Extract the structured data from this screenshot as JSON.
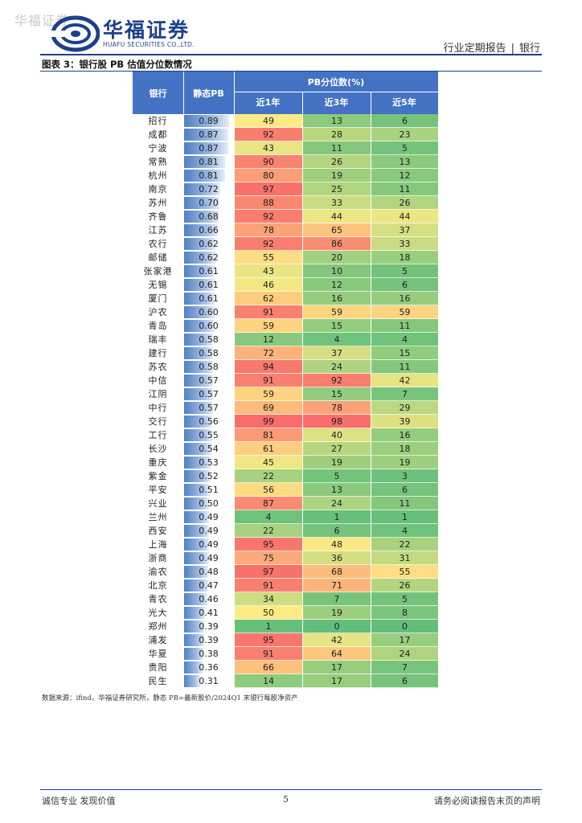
{
  "watermark": "华福证券",
  "logo": {
    "cn": "华福证券",
    "en": "HUAFU SECURITIES CO.,LTD.",
    "brand_color": "#1e3f8a"
  },
  "header": {
    "report_type": "行业定期报告",
    "separator": "|",
    "industry": "银行"
  },
  "figure_title": "图表 3：银行股 PB 估值分位数情况",
  "table": {
    "col_bank": "银行",
    "col_pb": "静态PB",
    "col_group": "PB分位数(%)",
    "col_y1": "近1年",
    "col_y3": "近3年",
    "col_y5": "近5年",
    "pb_max": 0.89,
    "rows": [
      {
        "bank": "招行",
        "pb": "0.89",
        "y1": "49",
        "y3": "13",
        "y5": "6"
      },
      {
        "bank": "成都",
        "pb": "0.87",
        "y1": "92",
        "y3": "28",
        "y5": "23"
      },
      {
        "bank": "宁波",
        "pb": "0.87",
        "y1": "43",
        "y3": "11",
        "y5": "5"
      },
      {
        "bank": "常熟",
        "pb": "0.81",
        "y1": "90",
        "y3": "26",
        "y5": "13"
      },
      {
        "bank": "杭州",
        "pb": "0.81",
        "y1": "80",
        "y3": "19",
        "y5": "12"
      },
      {
        "bank": "南京",
        "pb": "0.72",
        "y1": "97",
        "y3": "25",
        "y5": "11"
      },
      {
        "bank": "苏州",
        "pb": "0.70",
        "y1": "88",
        "y3": "33",
        "y5": "26"
      },
      {
        "bank": "齐鲁",
        "pb": "0.68",
        "y1": "92",
        "y3": "44",
        "y5": "44"
      },
      {
        "bank": "江苏",
        "pb": "0.66",
        "y1": "78",
        "y3": "65",
        "y5": "37"
      },
      {
        "bank": "农行",
        "pb": "0.62",
        "y1": "92",
        "y3": "86",
        "y5": "33"
      },
      {
        "bank": "邮储",
        "pb": "0.62",
        "y1": "55",
        "y3": "20",
        "y5": "18"
      },
      {
        "bank": "张家港",
        "pb": "0.61",
        "y1": "43",
        "y3": "10",
        "y5": "5"
      },
      {
        "bank": "无锡",
        "pb": "0.61",
        "y1": "46",
        "y3": "12",
        "y5": "6"
      },
      {
        "bank": "厦门",
        "pb": "0.61",
        "y1": "62",
        "y3": "16",
        "y5": "16"
      },
      {
        "bank": "沪农",
        "pb": "0.60",
        "y1": "91",
        "y3": "59",
        "y5": "59"
      },
      {
        "bank": "青岛",
        "pb": "0.60",
        "y1": "59",
        "y3": "15",
        "y5": "11"
      },
      {
        "bank": "瑞丰",
        "pb": "0.58",
        "y1": "12",
        "y3": "4",
        "y5": "4"
      },
      {
        "bank": "建行",
        "pb": "0.58",
        "y1": "72",
        "y3": "37",
        "y5": "15"
      },
      {
        "bank": "苏农",
        "pb": "0.58",
        "y1": "94",
        "y3": "24",
        "y5": "11"
      },
      {
        "bank": "中信",
        "pb": "0.57",
        "y1": "91",
        "y3": "92",
        "y5": "42"
      },
      {
        "bank": "江阴",
        "pb": "0.57",
        "y1": "59",
        "y3": "15",
        "y5": "7"
      },
      {
        "bank": "中行",
        "pb": "0.57",
        "y1": "69",
        "y3": "78",
        "y5": "29"
      },
      {
        "bank": "交行",
        "pb": "0.56",
        "y1": "99",
        "y3": "98",
        "y5": "39"
      },
      {
        "bank": "工行",
        "pb": "0.55",
        "y1": "81",
        "y3": "40",
        "y5": "16"
      },
      {
        "bank": "长沙",
        "pb": "0.54",
        "y1": "61",
        "y3": "27",
        "y5": "18"
      },
      {
        "bank": "重庆",
        "pb": "0.53",
        "y1": "45",
        "y3": "19",
        "y5": "19"
      },
      {
        "bank": "紫金",
        "pb": "0.52",
        "y1": "22",
        "y3": "5",
        "y5": "3"
      },
      {
        "bank": "平安",
        "pb": "0.51",
        "y1": "56",
        "y3": "13",
        "y5": "6"
      },
      {
        "bank": "兴业",
        "pb": "0.50",
        "y1": "87",
        "y3": "24",
        "y5": "11"
      },
      {
        "bank": "兰州",
        "pb": "0.49",
        "y1": "4",
        "y3": "1",
        "y5": "1"
      },
      {
        "bank": "西安",
        "pb": "0.49",
        "y1": "22",
        "y3": "6",
        "y5": "4"
      },
      {
        "bank": "上海",
        "pb": "0.49",
        "y1": "95",
        "y3": "48",
        "y5": "22"
      },
      {
        "bank": "浙商",
        "pb": "0.49",
        "y1": "75",
        "y3": "36",
        "y5": "31"
      },
      {
        "bank": "渝农",
        "pb": "0.48",
        "y1": "97",
        "y3": "68",
        "y5": "55"
      },
      {
        "bank": "北京",
        "pb": "0.47",
        "y1": "91",
        "y3": "71",
        "y5": "26"
      },
      {
        "bank": "青农",
        "pb": "0.46",
        "y1": "34",
        "y3": "7",
        "y5": "5"
      },
      {
        "bank": "光大",
        "pb": "0.41",
        "y1": "50",
        "y3": "19",
        "y5": "8"
      },
      {
        "bank": "郑州",
        "pb": "0.39",
        "y1": "1",
        "y3": "0",
        "y5": "0"
      },
      {
        "bank": "浦发",
        "pb": "0.39",
        "y1": "95",
        "y3": "42",
        "y5": "17"
      },
      {
        "bank": "华夏",
        "pb": "0.38",
        "y1": "91",
        "y3": "64",
        "y5": "24"
      },
      {
        "bank": "贵阳",
        "pb": "0.36",
        "y1": "66",
        "y3": "17",
        "y5": "7"
      },
      {
        "bank": "民生",
        "pb": "0.31",
        "y1": "14",
        "y3": "17",
        "y5": "6"
      }
    ],
    "colors": {
      "low": "#63be7b",
      "mid": "#ffeb84",
      "high": "#f8696b",
      "header_bg": "#4472c4"
    }
  },
  "source_note": "数据来源：ifind，华福证券研究所，静态 PB=最新股价/2024Q1 末银行每股净资产",
  "footer": {
    "left": "诚信专业  发现价值",
    "page": "5",
    "right": "请务必阅读报告末页的声明"
  }
}
